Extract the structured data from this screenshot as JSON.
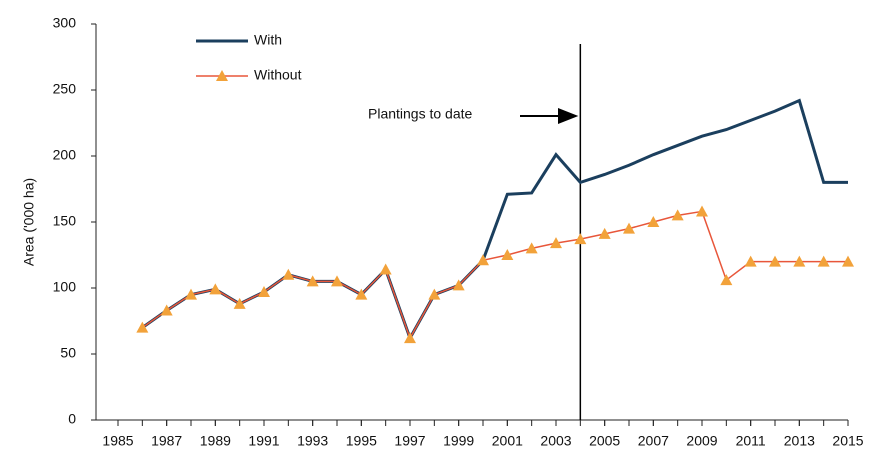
{
  "chart_data": {
    "type": "line",
    "y_label": "Area ('000 ha)",
    "x": [
      1986,
      1987,
      1988,
      1989,
      1990,
      1991,
      1992,
      1993,
      1994,
      1995,
      1996,
      1997,
      1998,
      1999,
      2000,
      2001,
      2002,
      2003,
      2004,
      2005,
      2006,
      2007,
      2008,
      2009,
      2010,
      2011,
      2012,
      2013,
      2014,
      2015
    ],
    "series": [
      {
        "name": "With",
        "color": "#1b3f5e",
        "marker": "none",
        "values": [
          70,
          83,
          95,
          99,
          88,
          97,
          110,
          105,
          105,
          95,
          114,
          62,
          95,
          102,
          121,
          171,
          172,
          201,
          180,
          186,
          193,
          201,
          208,
          215,
          220,
          227,
          234,
          242,
          180,
          180
        ]
      },
      {
        "name": "Without",
        "color": "#e8563a",
        "marker": "triangle",
        "marker_color": "#f2a23a",
        "values": [
          70,
          83,
          95,
          99,
          88,
          97,
          110,
          105,
          105,
          95,
          114,
          62,
          95,
          102,
          121,
          125,
          130,
          134,
          137,
          141,
          145,
          150,
          155,
          158,
          106,
          120,
          120,
          120,
          120,
          120
        ]
      }
    ],
    "annotation": {
      "text": "Plantings to date",
      "x": 2004
    },
    "xlim": [
      1985,
      2015
    ],
    "xticks": [
      1985,
      1987,
      1989,
      1991,
      1993,
      1995,
      1997,
      1999,
      2001,
      2003,
      2005,
      2007,
      2009,
      2011,
      2013,
      2015
    ],
    "ylim": [
      0,
      300
    ],
    "yticks": [
      0,
      50,
      100,
      150,
      200,
      250,
      300
    ],
    "legend": "top-left"
  }
}
